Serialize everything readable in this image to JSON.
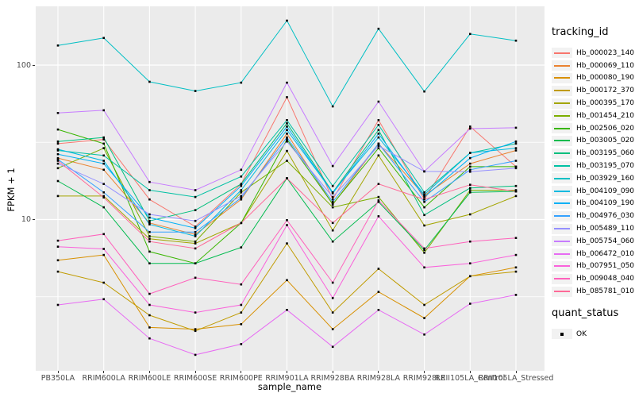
{
  "chart_data": {
    "type": "line",
    "title": "",
    "xlabel": "sample_name",
    "ylabel": "FPKM + 1",
    "y_scale": "log10",
    "ylim": [
      1.05,
      255
    ],
    "grid": {
      "major_y": [
        100,
        10
      ],
      "minor_y": [
        31.623,
        3.1623
      ],
      "vertical_at_each_category": true
    },
    "y_ticks": [
      {
        "label": "100",
        "value": 100
      },
      {
        "label": "10",
        "value": 10
      }
    ],
    "categories": [
      "PB350LA",
      "RRIM600LA",
      "RRIM600LE",
      "RRIM600SE",
      "RRIM600PE",
      "RRIM901LA",
      "RRIM928BA",
      "RRIM928LA",
      "RRIM928LE",
      "RRII105LA_Control",
      "RRII105LA_Stressed"
    ],
    "series": [
      {
        "name": "Hb_000023_140",
        "color": "#F8766D",
        "values": [
          31,
          33,
          13.5,
          9,
          17,
          62,
          13.5,
          44,
          13.5,
          40,
          22
        ]
      },
      {
        "name": "Hb_000069_110",
        "color": "#EA8331",
        "values": [
          25,
          21,
          9.5,
          8,
          13.5,
          36,
          12.5,
          31,
          14.3,
          23,
          28
        ]
      },
      {
        "name": "Hb_000080_190",
        "color": "#D89000",
        "values": [
          5.45,
          5.9,
          2.0,
          1.95,
          2.1,
          4.05,
          1.95,
          3.4,
          2.3,
          4.3,
          4.9
        ]
      },
      {
        "name": "Hb_000172_370",
        "color": "#C09B00",
        "values": [
          4.6,
          3.9,
          2.4,
          1.9,
          2.5,
          7.0,
          2.5,
          4.8,
          2.8,
          4.3,
          4.6
        ]
      },
      {
        "name": "Hb_000395_170",
        "color": "#A3A500",
        "values": [
          14.2,
          14.2,
          7.5,
          7.0,
          9.5,
          27.8,
          8.5,
          26,
          9.15,
          10.8,
          14.2
        ]
      },
      {
        "name": "Hb_001454_210",
        "color": "#7CAE00",
        "values": [
          21.5,
          29,
          7.8,
          7.2,
          15,
          24,
          12,
          14,
          6.1,
          15.5,
          15.5
        ]
      },
      {
        "name": "Hb_002506_020",
        "color": "#39B600",
        "values": [
          38.3,
          31,
          6.2,
          5.2,
          9.5,
          33,
          12.6,
          29,
          12,
          22,
          22
        ]
      },
      {
        "name": "Hb_003005_020",
        "color": "#00BB4E",
        "values": [
          17.75,
          12,
          5.2,
          5.2,
          6.6,
          18.5,
          7.2,
          13,
          6.35,
          15,
          15.2
        ]
      },
      {
        "name": "Hb_003195_060",
        "color": "#00BF7D",
        "values": [
          32,
          34,
          9.8,
          11.5,
          17,
          42,
          15,
          38,
          10.7,
          16,
          16.5
        ]
      },
      {
        "name": "Hb_003195_070",
        "color": "#00C1A3",
        "values": [
          28,
          26,
          15.5,
          14,
          19,
          44,
          16.5,
          41,
          15,
          27,
          31
        ]
      },
      {
        "name": "Hb_003929_160",
        "color": "#00BFC4",
        "values": [
          134,
          150,
          78,
          68,
          77,
          194,
          54,
          172,
          67.5,
          159,
          144
        ]
      },
      {
        "name": "Hb_004109_090",
        "color": "#00BAE0",
        "values": [
          28.5,
          24,
          9.3,
          7.8,
          15.5,
          38,
          15,
          34,
          14.5,
          27,
          29
        ]
      },
      {
        "name": "Hb_004109_190",
        "color": "#00B0F6",
        "values": [
          26.5,
          23,
          10.3,
          8.8,
          16.5,
          40,
          14.8,
          36,
          14,
          25,
          32
        ]
      },
      {
        "name": "Hb_004976_030",
        "color": "#35A2FF",
        "values": [
          24.5,
          15,
          8.3,
          8.3,
          13.8,
          34,
          13,
          31,
          13,
          21,
          24
        ]
      },
      {
        "name": "Hb_005489_110",
        "color": "#9590FF",
        "values": [
          23,
          17,
          10.8,
          9.8,
          14.2,
          32,
          14,
          30,
          20.5,
          20.4,
          21.5
        ]
      },
      {
        "name": "Hb_005754_060",
        "color": "#C77CFF",
        "values": [
          49,
          51,
          17.5,
          15.5,
          21,
          77,
          22.2,
          58,
          20.5,
          38.8,
          39.3
        ]
      },
      {
        "name": "Hb_006472_010",
        "color": "#E76BF3",
        "values": [
          2.8,
          3.05,
          1.7,
          1.33,
          1.56,
          2.6,
          1.5,
          2.6,
          1.8,
          2.85,
          3.25
        ]
      },
      {
        "name": "Hb_007951_050",
        "color": "#FA62DB",
        "values": [
          6.67,
          6.45,
          2.8,
          2.5,
          2.8,
          9.2,
          3.1,
          10.5,
          4.9,
          5.2,
          5.9
        ]
      },
      {
        "name": "Hb_009048_040",
        "color": "#FF62BC",
        "values": [
          7.3,
          8.05,
          3.3,
          4.2,
          3.8,
          9.9,
          3.9,
          13.3,
          6.5,
          7.2,
          7.6
        ]
      },
      {
        "name": "Hb_085781_010",
        "color": "#FF6A98",
        "values": [
          24,
          13.9,
          7.2,
          6.5,
          9.5,
          18.5,
          9.5,
          17,
          13.5,
          16.8,
          15.2
        ]
      }
    ],
    "colors": {
      "panel_bg": "#EBEBEB",
      "grid": "#FFFFFF",
      "point": "#000000",
      "tick_text": "#4D4D4D",
      "legend_key_bg": "#F2F2F2"
    },
    "legend_position": "right"
  },
  "legend": {
    "tracking_title": "tracking_id",
    "quant_title": "quant_status",
    "quant_entries": [
      {
        "label": "OK",
        "marker": "black-square"
      }
    ]
  }
}
